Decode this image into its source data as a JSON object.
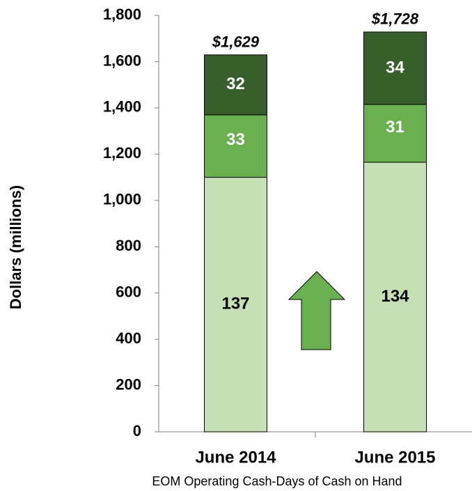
{
  "chart_data": {
    "type": "stacked_bar",
    "y_label": "Dollars (millions)",
    "x_label": "EOM Operating Cash-Days of Cash on Hand",
    "categories": [
      "June 2014",
      "June 2015"
    ],
    "series": [
      {
        "color": "#c5e0b4",
        "label_color": "#000000",
        "values": [
          1100,
          1165
        ],
        "days": [
          137,
          134
        ]
      },
      {
        "color": "#6aaf50",
        "label_color": "#ffffff",
        "values": [
          270,
          250
        ],
        "days": [
          33,
          31
        ]
      },
      {
        "color": "#375e2b",
        "label_color": "#ffffff",
        "values": [
          259,
          313
        ],
        "days": [
          32,
          34
        ]
      }
    ],
    "totals": [
      1629,
      1728
    ],
    "total_labels": [
      "$1,629",
      "$1,728"
    ],
    "ylim": [
      0,
      1800
    ],
    "yticks": [
      0,
      200,
      400,
      600,
      800,
      {
        "value": 1000,
        "label": "1,000"
      },
      {
        "value": 1200,
        "label": "1,200"
      },
      {
        "value": 1400,
        "label": "1,400"
      },
      {
        "value": 1600,
        "label": "1,600"
      },
      {
        "value": 1800,
        "label": "1,800"
      }
    ]
  }
}
